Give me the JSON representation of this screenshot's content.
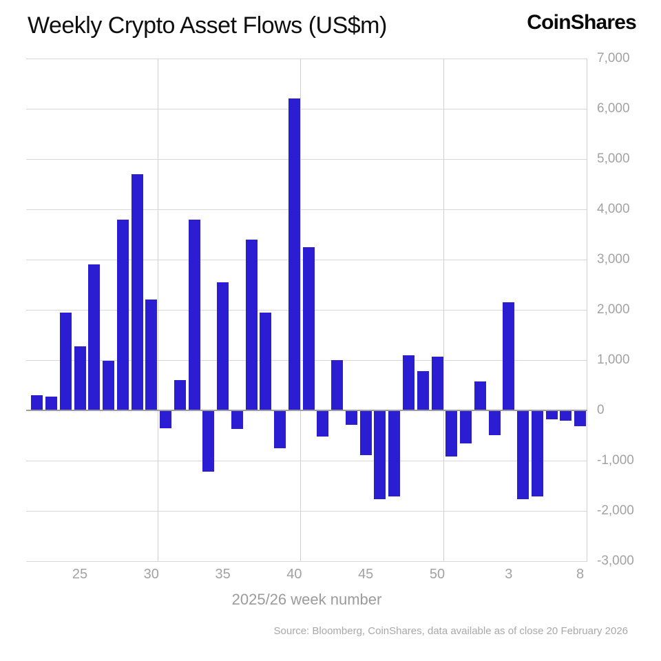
{
  "header": {
    "title": "Weekly Crypto Asset Flows (US$m)",
    "logo": "CoinShares"
  },
  "chart_data": {
    "type": "bar",
    "title": "Weekly Crypto Asset Flows (US$m)",
    "xlabel": "2025/26 week number",
    "ylabel": "",
    "ylim": [
      -3000,
      7000
    ],
    "grid": true,
    "bar_color": "#2b1dd1",
    "categories": [
      "22",
      "23",
      "24",
      "25",
      "26",
      "27",
      "28",
      "29",
      "30",
      "31",
      "32",
      "33",
      "34",
      "35",
      "36",
      "37",
      "38",
      "39",
      "40",
      "41",
      "42",
      "43",
      "44",
      "45",
      "46",
      "47",
      "48",
      "49",
      "50",
      "51",
      "52",
      "1",
      "2",
      "3",
      "4",
      "5",
      "6",
      "7",
      "8"
    ],
    "values": [
      300,
      280,
      1950,
      1270,
      2900,
      980,
      3800,
      4700,
      2200,
      -340,
      600,
      3800,
      -1200,
      2550,
      -350,
      3400,
      1950,
      -740,
      6200,
      3250,
      -500,
      1000,
      -280,
      -880,
      -1750,
      -1700,
      1100,
      780,
      1070,
      -900,
      -650,
      580,
      -480,
      2150,
      -1750,
      -1700,
      -170,
      -190,
      -300
    ],
    "start_week_index": 22,
    "y_ticks": [
      {
        "value": 7000,
        "label": "7,000"
      },
      {
        "value": 6000,
        "label": "6,000"
      },
      {
        "value": 5000,
        "label": "5,000"
      },
      {
        "value": 4000,
        "label": "4,000"
      },
      {
        "value": 3000,
        "label": "3,000"
      },
      {
        "value": 2000,
        "label": "2,000"
      },
      {
        "value": 1000,
        "label": "1,000"
      },
      {
        "value": 0,
        "label": "0"
      },
      {
        "value": -1000,
        "label": "-1,000"
      },
      {
        "value": -2000,
        "label": "-2,000"
      },
      {
        "value": -3000,
        "label": "-3,000"
      }
    ],
    "x_ticks": [
      {
        "week_index": 25,
        "label": "25"
      },
      {
        "week_index": 30,
        "label": "30"
      },
      {
        "week_index": 35,
        "label": "35"
      },
      {
        "week_index": 40,
        "label": "40"
      },
      {
        "week_index": 45,
        "label": "45"
      },
      {
        "week_index": 50,
        "label": "50"
      },
      {
        "week_index": 55,
        "label": "3"
      },
      {
        "week_index": 60,
        "label": "8"
      }
    ],
    "vertical_gridline_week_indices": [
      30,
      40,
      50,
      60
    ]
  },
  "footer": {
    "source": "Source: Bloomberg, CoinShares, data available as of close 20 February 2026"
  }
}
